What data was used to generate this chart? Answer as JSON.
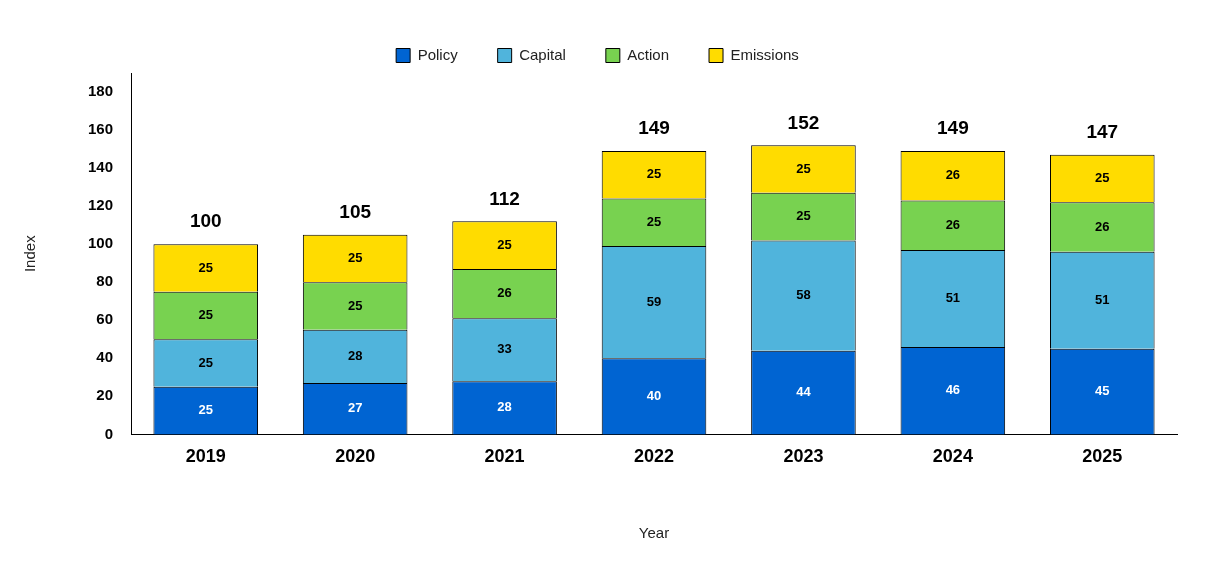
{
  "chart_data": {
    "type": "bar",
    "xlabel": "Year",
    "ylabel": "Index",
    "categories": [
      "2019",
      "2020",
      "2021",
      "2022",
      "2023",
      "2024",
      "2025"
    ],
    "series": [
      {
        "name": "Policy",
        "color": "#0064d2",
        "values": [
          25,
          27,
          28,
          40,
          44,
          46,
          45
        ]
      },
      {
        "name": "Capital",
        "color": "#50b4dc",
        "values": [
          25,
          28,
          33,
          59,
          58,
          51,
          51
        ]
      },
      {
        "name": "Action",
        "color": "#78d250",
        "values": [
          25,
          25,
          26,
          25,
          25,
          26,
          26
        ]
      },
      {
        "name": "Emissions",
        "color": "#ffdc00",
        "values": [
          25,
          25,
          25,
          25,
          25,
          26,
          25
        ]
      }
    ],
    "stacked": true,
    "data_labels": true,
    "totals": [
      "100",
      "105",
      "112",
      "149",
      "152",
      "149",
      "147"
    ],
    "ylim": [
      0,
      190
    ],
    "yticks": [
      0,
      20,
      40,
      60,
      80,
      100,
      120,
      140,
      160,
      180
    ],
    "grid": false,
    "legend": "top"
  }
}
